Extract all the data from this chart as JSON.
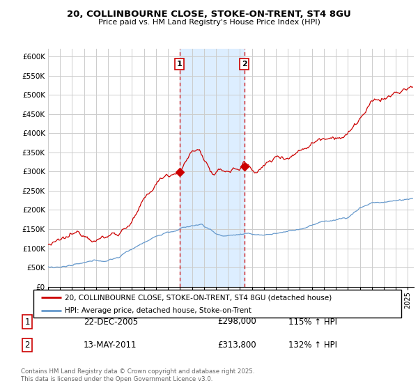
{
  "title": "20, COLLINBOURNE CLOSE, STOKE-ON-TRENT, ST4 8GU",
  "subtitle": "Price paid vs. HM Land Registry's House Price Index (HPI)",
  "xlim": [
    1995.0,
    2025.5
  ],
  "ylim": [
    0,
    620000
  ],
  "yticks": [
    0,
    50000,
    100000,
    150000,
    200000,
    250000,
    300000,
    350000,
    400000,
    450000,
    500000,
    550000,
    600000
  ],
  "ytick_labels": [
    "£0",
    "£50K",
    "£100K",
    "£150K",
    "£200K",
    "£250K",
    "£300K",
    "£350K",
    "£400K",
    "£450K",
    "£500K",
    "£550K",
    "£600K"
  ],
  "sale1_x": 2005.97,
  "sale1_y": 298000,
  "sale1_label": "1",
  "sale2_x": 2011.37,
  "sale2_y": 313800,
  "sale2_label": "2",
  "shaded_x1": 2005.97,
  "shaded_x2": 2011.37,
  "red_line_color": "#cc0000",
  "blue_line_color": "#6699cc",
  "shade_color": "#ddeeff",
  "vline_color": "#cc0000",
  "grid_color": "#cccccc",
  "background_color": "#ffffff",
  "legend_line1": "20, COLLINBOURNE CLOSE, STOKE-ON-TRENT, ST4 8GU (detached house)",
  "legend_line2": "HPI: Average price, detached house, Stoke-on-Trent",
  "table_row1_num": "1",
  "table_row1_date": "22-DEC-2005",
  "table_row1_price": "£298,000",
  "table_row1_hpi": "115% ↑ HPI",
  "table_row2_num": "2",
  "table_row2_date": "13-MAY-2011",
  "table_row2_price": "£313,800",
  "table_row2_hpi": "132% ↑ HPI",
  "footer": "Contains HM Land Registry data © Crown copyright and database right 2025.\nThis data is licensed under the Open Government Licence v3.0."
}
